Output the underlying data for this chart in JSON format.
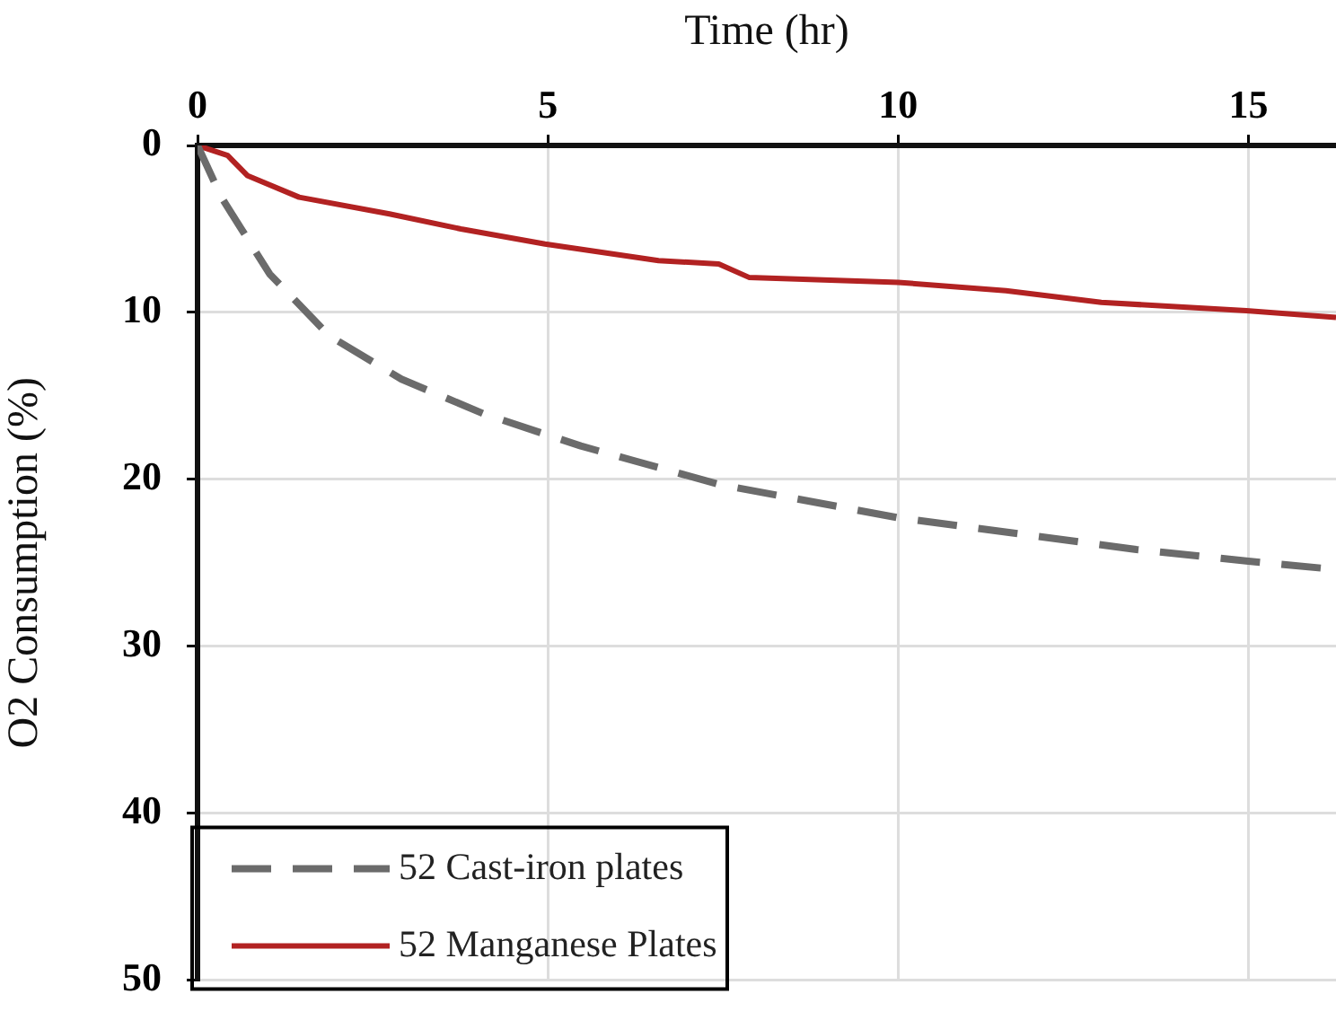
{
  "chart_data": {
    "type": "line",
    "xlabel": "Time (hr)",
    "ylabel": "O2 Consumption (%)",
    "xlim": [
      0,
      16.25
    ],
    "xticks": [
      0,
      5,
      10,
      15
    ],
    "ylim": [
      50,
      0
    ],
    "yticks": [
      0,
      10,
      20,
      30,
      40,
      50
    ],
    "grid": true,
    "legend": "bottom left",
    "marker": "none",
    "series": [
      {
        "name": "52 Cast-iron plates",
        "color": "#6b6b6b",
        "line_style": "dashed",
        "x": [
          0,
          0.34,
          1.03,
          1.88,
          2.91,
          4.1,
          5.47,
          7.44,
          10,
          13.4,
          15,
          16.25
        ],
        "values": [
          0,
          3.1,
          7.7,
          11.4,
          14,
          16.1,
          18,
          20.3,
          22.3,
          24.2,
          24.9,
          25.4
        ]
      },
      {
        "name": "52 Manganese Plates",
        "color": "#b22222",
        "line_style": "solid",
        "x": [
          0,
          0.43,
          0.71,
          1.45,
          2.74,
          3.76,
          4.96,
          6.58,
          7.44,
          7.87,
          10,
          11.54,
          12.9,
          14.97,
          16.25
        ],
        "values": [
          0,
          0.6,
          1.8,
          3.1,
          4.1,
          5,
          5.9,
          6.9,
          7.1,
          7.9,
          8.2,
          8.7,
          9.4,
          9.9,
          10.3
        ]
      }
    ]
  }
}
